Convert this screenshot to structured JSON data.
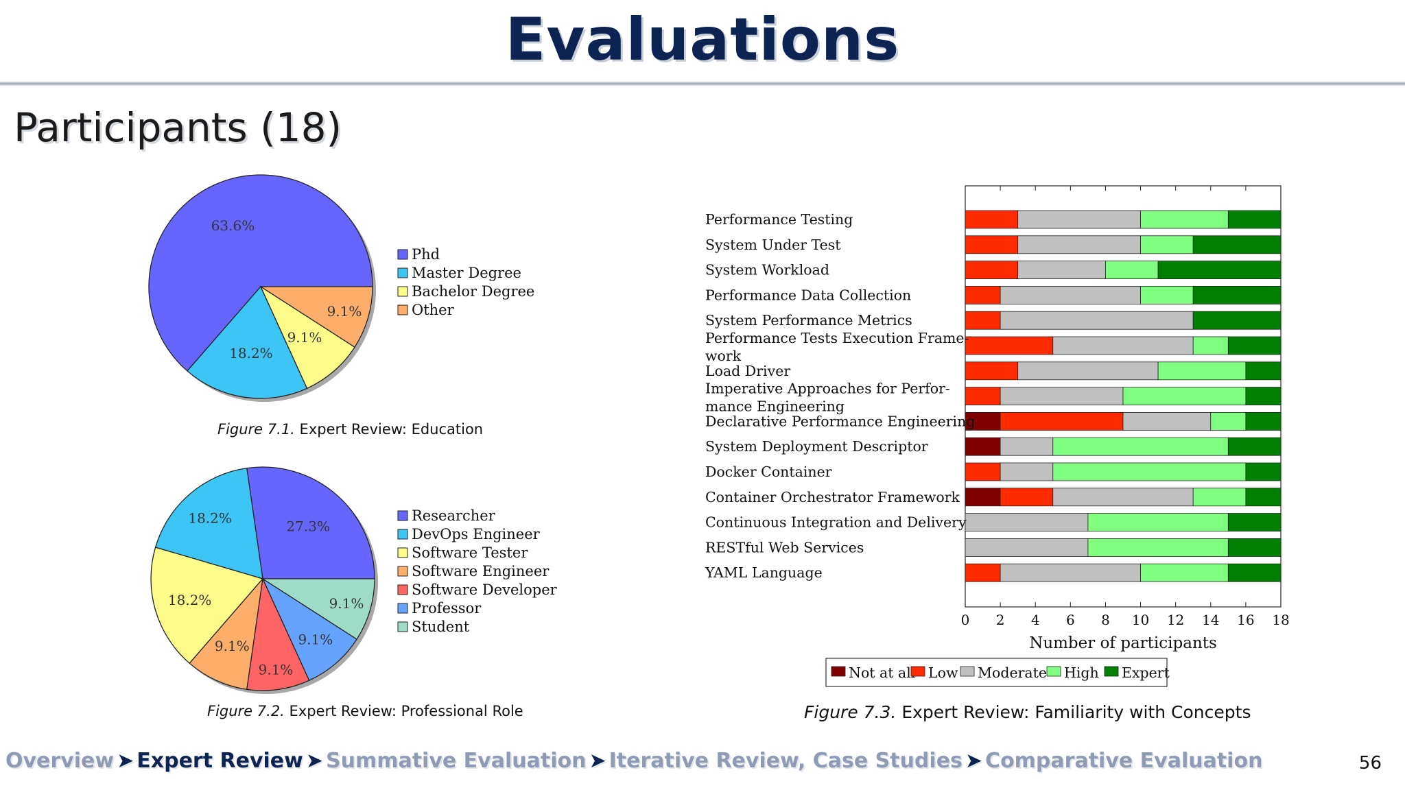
{
  "header": {
    "title": "Evaluations",
    "subtitle": "Participants (18)"
  },
  "captions": {
    "fig1": {
      "number": "Figure 7.1.",
      "text": "Expert Review: Education"
    },
    "fig2": {
      "number": "Figure 7.2.",
      "text": "Expert Review: Professional Role"
    },
    "fig3": {
      "number": "Figure 7.3.",
      "text": "Expert Review: Familiarity with Concepts"
    }
  },
  "breadcrumb": {
    "items": [
      "Overview",
      "Expert Review",
      "Summative Evaluation",
      "Iterative Review, Case Studies",
      "Comparative Evaluation"
    ],
    "current_index": 1,
    "separator": "➤"
  },
  "page_number": "56",
  "chart_data": [
    {
      "type": "pie",
      "labels": [
        "Phd",
        "Master Degree",
        "Bachelor Degree",
        "Other"
      ],
      "values": [
        63.6,
        18.2,
        9.1,
        9.1
      ],
      "value_labels": [
        "63.6%",
        "18.2%",
        "9.1%",
        "9.1%"
      ],
      "colors": [
        "#6666ff",
        "#3dc5f5",
        "#fcfc8a",
        "#fdae6b"
      ],
      "legend_position": "right"
    },
    {
      "type": "pie",
      "labels": [
        "Researcher",
        "DevOps Engineer",
        "Software Tester",
        "Software Engineer",
        "Software Developer",
        "Professor",
        "Student"
      ],
      "values": [
        27.3,
        18.2,
        18.2,
        9.1,
        9.1,
        9.1,
        9.1
      ],
      "value_labels": [
        "27.3%",
        "18.2%",
        "18.2%",
        "9.1%",
        "9.1%",
        "9.1%",
        "9.1%"
      ],
      "colors": [
        "#6666ff",
        "#3dc5f5",
        "#fcfc8a",
        "#fdae6b",
        "#ff6464",
        "#66a3ff",
        "#9fdcc8"
      ],
      "legend_position": "right"
    },
    {
      "type": "bar",
      "orientation": "horizontal",
      "stacked": true,
      "categories": [
        "Performance Testing",
        "System Under Test",
        "System Workload",
        "Performance Data Collection",
        "System Performance Metrics",
        "Performance Tests Execution Frame-\nwork",
        "Load Driver",
        "Imperative Approaches for Perfor-\nmance Engineering",
        "Declarative Performance Engineering",
        "System Deployment Descriptor",
        "Docker Container",
        "Container Orchestrator Framework",
        "Continuous Integration and Delivery",
        "RESTful Web Services",
        "YAML Language"
      ],
      "series": [
        {
          "name": "Not at all",
          "color": "#800000",
          "values": [
            0,
            0,
            0,
            0,
            0,
            0,
            0,
            0,
            2,
            2,
            0,
            2,
            0,
            0,
            0
          ]
        },
        {
          "name": "Low",
          "color": "#ff2a00",
          "values": [
            3,
            3,
            3,
            2,
            2,
            5,
            3,
            2,
            7,
            0,
            2,
            3,
            0,
            0,
            2
          ]
        },
        {
          "name": "Moderate",
          "color": "#c0c0c0",
          "values": [
            7,
            7,
            5,
            8,
            11,
            8,
            8,
            7,
            5,
            3,
            3,
            8,
            7,
            7,
            8
          ]
        },
        {
          "name": "High",
          "color": "#80ff80",
          "values": [
            5,
            3,
            3,
            3,
            0,
            2,
            5,
            7,
            2,
            10,
            11,
            3,
            8,
            8,
            5
          ]
        },
        {
          "name": "Expert",
          "color": "#008000",
          "values": [
            3,
            5,
            7,
            5,
            5,
            3,
            2,
            2,
            2,
            3,
            2,
            2,
            3,
            3,
            3
          ]
        }
      ],
      "xlim": [
        0,
        18
      ],
      "xticks": [
        0,
        2,
        4,
        6,
        8,
        10,
        12,
        14,
        16,
        18
      ],
      "xlabel": "Number of participants",
      "legend_position": "bottom"
    }
  ]
}
